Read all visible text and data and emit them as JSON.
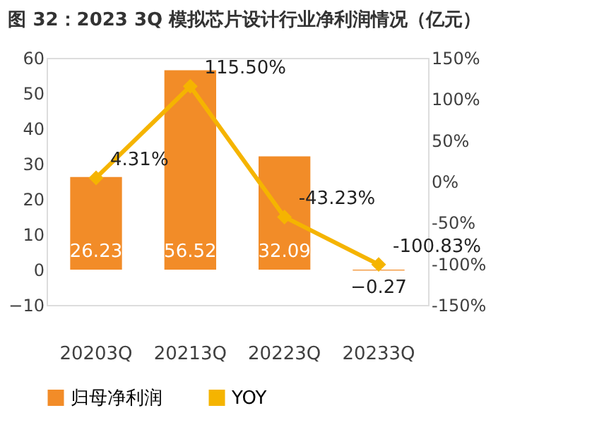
{
  "chart_data": {
    "type": "bar",
    "title": "图 32：2023 3Q 模拟芯片设计行业净利润情况（亿元）",
    "categories": [
      "20203Q",
      "20213Q",
      "20223Q",
      "20233Q"
    ],
    "series": [
      {
        "name": "归母净利润",
        "color": "#f28c28",
        "values": [
          26.23,
          56.52,
          32.09,
          -0.27
        ]
      },
      {
        "name": "YOY",
        "type": "line",
        "axis": "y2",
        "color": "#f5b400",
        "marker": "diamond",
        "values": [
          4.31,
          115.5,
          -43.23,
          -100.83
        ],
        "value_labels": [
          "4.31%",
          "115.50%",
          "-43.23%",
          "-100.83%"
        ]
      }
    ],
    "data_labels": true,
    "ylim": [
      -10,
      60
    ],
    "yticks": [
      -10,
      0,
      10,
      20,
      30,
      40,
      50,
      60
    ],
    "y2lim": [
      -150,
      150
    ],
    "y2ticks": [
      {
        "value": -150,
        "label": "-150%"
      },
      {
        "value": -100,
        "label": "-100%"
      },
      {
        "value": -50,
        "label": "-50%"
      },
      {
        "value": 0,
        "label": "0%"
      },
      {
        "value": 50,
        "label": "50%"
      },
      {
        "value": 100,
        "label": "100%"
      },
      {
        "value": 150,
        "label": "150%"
      }
    ],
    "grid": false,
    "legend": "bottom"
  }
}
